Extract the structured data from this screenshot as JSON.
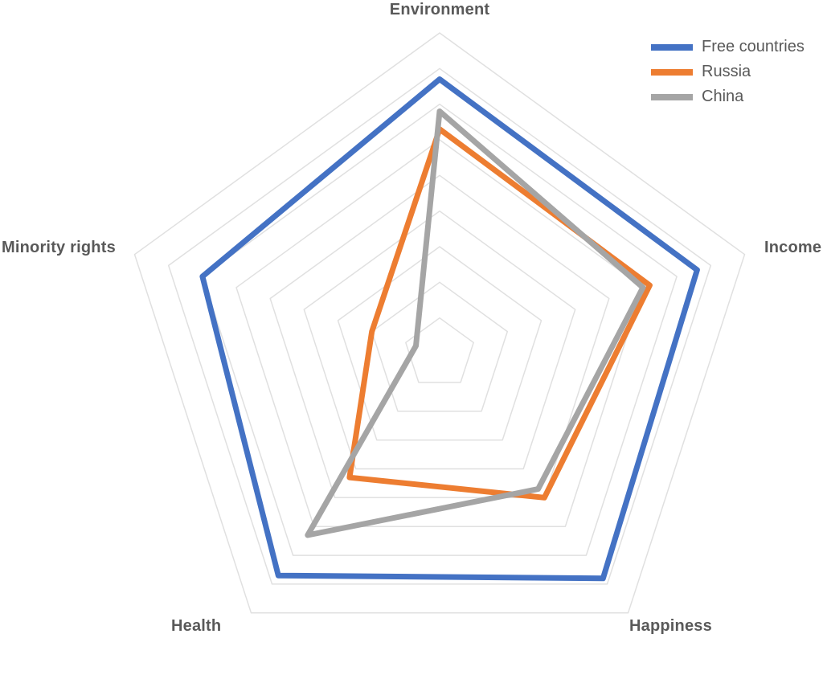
{
  "chart_data": {
    "type": "radar",
    "title": "",
    "axes": [
      "Environment",
      "Income",
      "Happiness",
      "Health",
      "Minority rights"
    ],
    "scale": {
      "min": 0,
      "max": 9,
      "gridlines": 9
    },
    "series": [
      {
        "name": "Free countries",
        "color": "#4472c4",
        "values": [
          7.7,
          7.6,
          7.8,
          7.7,
          7.0
        ]
      },
      {
        "name": "Russia",
        "color": "#ed7d31",
        "values": [
          6.3,
          6.2,
          5.0,
          4.3,
          2.0
        ]
      },
      {
        "name": "China",
        "color": "#a5a5a5",
        "values": [
          6.8,
          6.0,
          4.7,
          6.3,
          0.7
        ]
      }
    ],
    "legend_position": "top-right",
    "grid_on": true,
    "gridline_color": "#e0e0e0",
    "axis_label_color": "#595959",
    "series_stroke_width": 7,
    "gridline_stroke_width": 1.5
  }
}
